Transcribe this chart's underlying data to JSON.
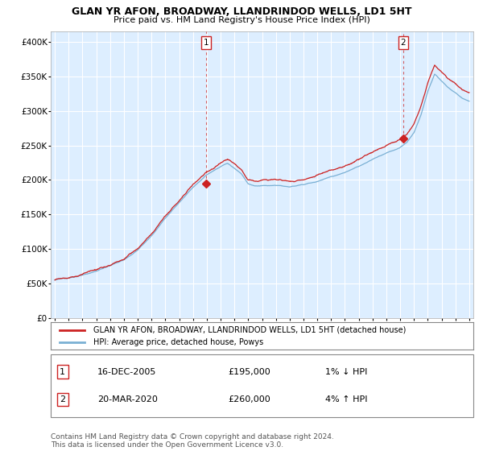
{
  "title": "GLAN YR AFON, BROADWAY, LLANDRINDOD WELLS, LD1 5HT",
  "subtitle": "Price paid vs. HM Land Registry's House Price Index (HPI)",
  "ylabel_ticks": [
    "£0",
    "£50K",
    "£100K",
    "£150K",
    "£200K",
    "£250K",
    "£300K",
    "£350K",
    "£400K"
  ],
  "ytick_values": [
    0,
    50000,
    100000,
    150000,
    200000,
    250000,
    300000,
    350000,
    400000
  ],
  "ylim": [
    0,
    415000
  ],
  "xlim_start": 1994.7,
  "xlim_end": 2025.3,
  "sale1_x": 2005.96,
  "sale1_y": 195000,
  "sale1_label": "1",
  "sale2_x": 2020.22,
  "sale2_y": 260000,
  "sale2_label": "2",
  "legend_line1": "GLAN YR AFON, BROADWAY, LLANDRINDOD WELLS, LD1 5HT (detached house)",
  "legend_line2": "HPI: Average price, detached house, Powys",
  "note1_label": "1",
  "note1_date": "16-DEC-2005",
  "note1_price": "£195,000",
  "note1_change": "1% ↓ HPI",
  "note2_label": "2",
  "note2_date": "20-MAR-2020",
  "note2_price": "£260,000",
  "note2_change": "4% ↑ HPI",
  "footer": "Contains HM Land Registry data © Crown copyright and database right 2024.\nThis data is licensed under the Open Government Licence v3.0.",
  "hpi_color": "#7ab0d4",
  "price_color": "#cc2222",
  "background_color": "#ffffff",
  "plot_bg_color": "#ddeeff",
  "grid_color": "#ffffff",
  "xticks": [
    1995,
    1996,
    1997,
    1998,
    1999,
    2000,
    2001,
    2002,
    2003,
    2004,
    2005,
    2006,
    2007,
    2008,
    2009,
    2010,
    2011,
    2012,
    2013,
    2014,
    2015,
    2016,
    2017,
    2018,
    2019,
    2020,
    2021,
    2022,
    2023,
    2024,
    2025
  ]
}
